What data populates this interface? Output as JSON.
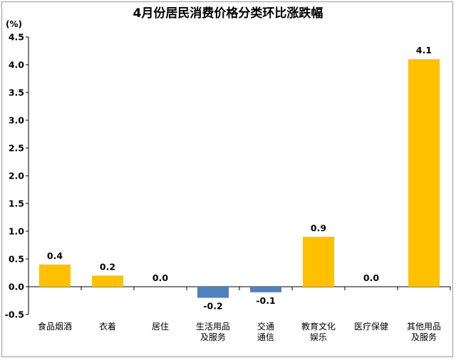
{
  "chart_data": {
    "type": "bar",
    "title": "4月份居民消费价格分类环比涨跌幅",
    "unit_label": "(%)",
    "categories": [
      [
        "食品烟酒"
      ],
      [
        "衣着"
      ],
      [
        "居住"
      ],
      [
        "生活用品",
        "及服务"
      ],
      [
        "交通",
        "通信"
      ],
      [
        "教育文化",
        "娱乐"
      ],
      [
        "医疗保健"
      ],
      [
        "其他用品",
        "及服务"
      ]
    ],
    "values": [
      0.4,
      0.2,
      0.0,
      -0.2,
      -0.1,
      0.9,
      0.0,
      4.1
    ],
    "value_labels": [
      "0.4",
      "0.2",
      "0.0",
      "-0.2",
      "-0.1",
      "0.9",
      "0.0",
      "4.1"
    ],
    "ylim": [
      -0.5,
      4.5
    ],
    "yticks": [
      "-0.5",
      "0.0",
      "0.5",
      "1.0",
      "1.5",
      "2.0",
      "2.5",
      "3.0",
      "3.5",
      "4.0",
      "4.5"
    ],
    "ytick_values": [
      -0.5,
      0.0,
      0.5,
      1.0,
      1.5,
      2.0,
      2.5,
      3.0,
      3.5,
      4.0,
      4.5
    ],
    "grid": false,
    "colors": {
      "positive": "#FFC000",
      "negative": "#4F81BD",
      "axis": "#000000"
    }
  }
}
